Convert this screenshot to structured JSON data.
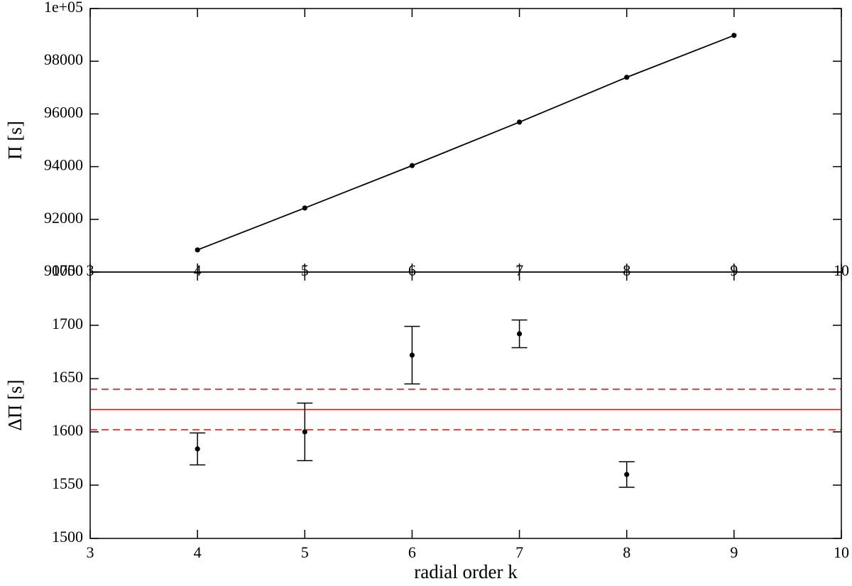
{
  "chart_data": [
    {
      "type": "line",
      "y_label": "Π [s]",
      "x": [
        4,
        5,
        6,
        7,
        8,
        9
      ],
      "series": [
        {
          "color": "#000000",
          "values": [
            90840,
            92430,
            94040,
            95690,
            97390,
            98980
          ]
        }
      ],
      "xlim": [
        3,
        10
      ],
      "xticks": [
        3,
        4,
        5,
        6,
        7,
        8,
        9,
        10
      ],
      "ylim": [
        90000,
        100000
      ],
      "yticks": [
        90000,
        92000,
        94000,
        96000,
        98000,
        {
          "value": 100000,
          "label": "1e+05"
        }
      ]
    },
    {
      "type": "scatter",
      "y_label": "ΔΠ [s]",
      "x_label": "radial order k",
      "x": [
        4,
        5,
        6,
        7,
        8
      ],
      "series": [
        {
          "color": "#000000",
          "values": [
            1584,
            1600,
            1672,
            1692,
            1560
          ],
          "errors": [
            15,
            27,
            27,
            13,
            12
          ]
        }
      ],
      "hlines": [
        {
          "value": 1621,
          "color": "#ff0000",
          "dashed": false
        },
        {
          "value": 1640,
          "color": "#ff0000",
          "dashed": true
        },
        {
          "value": 1602,
          "color": "#ff0000",
          "dashed": true
        }
      ],
      "xlim": [
        3,
        10
      ],
      "xticks": [
        3,
        4,
        5,
        6,
        7,
        8,
        9,
        10
      ],
      "ylim": [
        1500,
        1750
      ],
      "yticks": [
        1500,
        1550,
        1600,
        1650,
        1700,
        1750
      ]
    }
  ]
}
